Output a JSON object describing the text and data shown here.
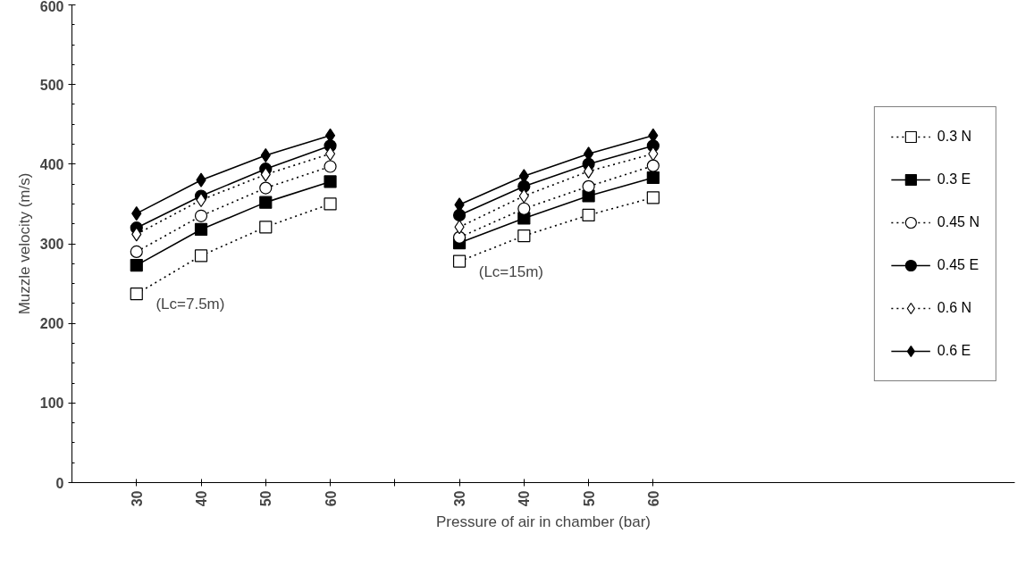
{
  "chart_data": {
    "type": "line",
    "xlabel": "Pressure of air in chamber (bar)",
    "ylabel": "Muzzle velocity (m/s)",
    "categories": [
      "30",
      "40",
      "50",
      "60",
      null,
      "30",
      "40",
      "50",
      "60"
    ],
    "ylim": [
      0,
      600
    ],
    "yticks": [
      0,
      100,
      200,
      300,
      400,
      500,
      600
    ],
    "grid": false,
    "legend": "right",
    "annotations": [
      "(Lc=7.5m)",
      "(Lc=15m)"
    ],
    "series": [
      {
        "name": "0.3 N",
        "color": "#000000",
        "marker": "square",
        "line_style": "dotted",
        "values": [
          237,
          285,
          321,
          350,
          null,
          278,
          310,
          336,
          358
        ]
      },
      {
        "name": "0.3 E",
        "color": "#000000",
        "marker": "square",
        "line_style": "solid",
        "values": [
          273,
          318,
          352,
          378,
          null,
          301,
          332,
          360,
          383
        ]
      },
      {
        "name": "0.45 N",
        "color": "#000000",
        "marker": "circle",
        "line_style": "dotted",
        "values": [
          290,
          335,
          370,
          397,
          null,
          308,
          344,
          372,
          398
        ]
      },
      {
        "name": "0.45 E",
        "color": "#000000",
        "marker": "circle",
        "line_style": "solid",
        "values": [
          320,
          360,
          394,
          423,
          null,
          336,
          372,
          400,
          423
        ]
      },
      {
        "name": "0.6 N",
        "color": "#000000",
        "marker": "diamond",
        "line_style": "dotted",
        "values": [
          312,
          355,
          387,
          413,
          null,
          321,
          360,
          391,
          413
        ]
      },
      {
        "name": "0.6 E",
        "color": "#000000",
        "marker": "diamond",
        "line_style": "solid",
        "values": [
          338,
          380,
          411,
          436,
          null,
          349,
          385,
          413,
          436
        ]
      }
    ]
  }
}
